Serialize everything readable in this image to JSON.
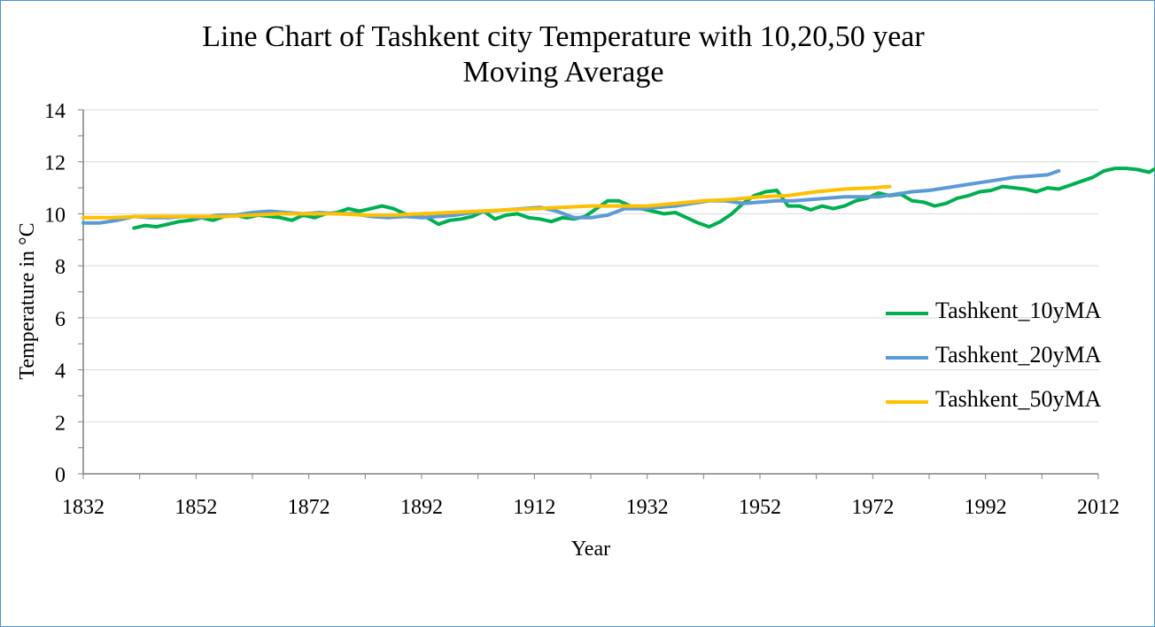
{
  "chart_data": {
    "type": "line",
    "title_lines": [
      "Line Chart of Tashkent city Temperature with 10,20,50 year",
      "Moving Average"
    ],
    "xlabel": "Year",
    "ylabel": "Temperature in °C",
    "xlim": [
      1832,
      2012
    ],
    "ylim": [
      0,
      14
    ],
    "x_ticks": [
      1832,
      1852,
      1872,
      1892,
      1912,
      1932,
      1952,
      1972,
      1992,
      2012
    ],
    "y_ticks": [
      0,
      2,
      4,
      6,
      8,
      10,
      12,
      14
    ],
    "grid": true,
    "legend_position": "right",
    "series": [
      {
        "name": "Tashkent_10yMA",
        "color": "#00b050",
        "points": [
          [
            1841,
            9.45
          ],
          [
            1843,
            9.55
          ],
          [
            1845,
            9.5
          ],
          [
            1847,
            9.6
          ],
          [
            1849,
            9.7
          ],
          [
            1851,
            9.75
          ],
          [
            1853,
            9.85
          ],
          [
            1855,
            9.75
          ],
          [
            1857,
            9.9
          ],
          [
            1859,
            9.95
          ],
          [
            1861,
            9.85
          ],
          [
            1863,
            9.95
          ],
          [
            1865,
            9.9
          ],
          [
            1867,
            9.85
          ],
          [
            1869,
            9.75
          ],
          [
            1871,
            9.95
          ],
          [
            1873,
            9.85
          ],
          [
            1875,
            10.0
          ],
          [
            1877,
            10.05
          ],
          [
            1879,
            10.2
          ],
          [
            1881,
            10.1
          ],
          [
            1883,
            10.2
          ],
          [
            1885,
            10.3
          ],
          [
            1887,
            10.2
          ],
          [
            1889,
            10.0
          ],
          [
            1891,
            9.9
          ],
          [
            1893,
            9.85
          ],
          [
            1895,
            9.6
          ],
          [
            1897,
            9.75
          ],
          [
            1899,
            9.8
          ],
          [
            1901,
            9.9
          ],
          [
            1903,
            10.1
          ],
          [
            1905,
            9.8
          ],
          [
            1907,
            9.95
          ],
          [
            1909,
            10.0
          ],
          [
            1911,
            9.85
          ],
          [
            1913,
            9.8
          ],
          [
            1915,
            9.7
          ],
          [
            1917,
            9.85
          ],
          [
            1919,
            9.8
          ],
          [
            1921,
            9.9
          ],
          [
            1923,
            10.2
          ],
          [
            1925,
            10.5
          ],
          [
            1927,
            10.5
          ],
          [
            1929,
            10.3
          ],
          [
            1931,
            10.2
          ],
          [
            1933,
            10.1
          ],
          [
            1935,
            10.0
          ],
          [
            1937,
            10.05
          ],
          [
            1939,
            9.85
          ],
          [
            1941,
            9.65
          ],
          [
            1943,
            9.5
          ],
          [
            1945,
            9.7
          ],
          [
            1947,
            10.0
          ],
          [
            1949,
            10.4
          ],
          [
            1951,
            10.7
          ],
          [
            1953,
            10.85
          ],
          [
            1955,
            10.9
          ],
          [
            1957,
            10.3
          ],
          [
            1959,
            10.3
          ],
          [
            1961,
            10.15
          ],
          [
            1963,
            10.3
          ],
          [
            1965,
            10.2
          ],
          [
            1967,
            10.3
          ],
          [
            1969,
            10.5
          ],
          [
            1971,
            10.6
          ],
          [
            1973,
            10.8
          ],
          [
            1975,
            10.7
          ],
          [
            1977,
            10.75
          ],
          [
            1979,
            10.5
          ],
          [
            1981,
            10.45
          ],
          [
            1983,
            10.3
          ],
          [
            1985,
            10.4
          ],
          [
            1987,
            10.6
          ],
          [
            1989,
            10.7
          ],
          [
            1991,
            10.85
          ],
          [
            1993,
            10.9
          ],
          [
            1995,
            11.05
          ],
          [
            1997,
            11.0
          ],
          [
            1999,
            10.95
          ],
          [
            2001,
            10.85
          ],
          [
            2003,
            11.0
          ],
          [
            2005,
            10.95
          ],
          [
            2007,
            11.1
          ],
          [
            2009,
            11.25
          ],
          [
            2011,
            11.4
          ],
          [
            2013,
            11.65
          ],
          [
            2015,
            11.75
          ],
          [
            2017,
            11.75
          ],
          [
            2019,
            11.7
          ],
          [
            2021,
            11.6
          ],
          [
            2023,
            11.85
          ]
        ]
      },
      {
        "name": "Tashkent_20yMA",
        "color": "#5b9bd5",
        "points": [
          [
            1832,
            9.65
          ],
          [
            1835,
            9.65
          ],
          [
            1838,
            9.75
          ],
          [
            1841,
            9.9
          ],
          [
            1844,
            9.85
          ],
          [
            1847,
            9.85
          ],
          [
            1850,
            9.9
          ],
          [
            1853,
            9.85
          ],
          [
            1856,
            9.95
          ],
          [
            1859,
            9.95
          ],
          [
            1862,
            10.05
          ],
          [
            1865,
            10.1
          ],
          [
            1868,
            10.05
          ],
          [
            1871,
            10.0
          ],
          [
            1874,
            10.05
          ],
          [
            1877,
            10.0
          ],
          [
            1880,
            10.0
          ],
          [
            1883,
            9.9
          ],
          [
            1886,
            9.85
          ],
          [
            1889,
            9.9
          ],
          [
            1892,
            9.85
          ],
          [
            1895,
            9.9
          ],
          [
            1898,
            9.95
          ],
          [
            1901,
            10.05
          ],
          [
            1904,
            10.1
          ],
          [
            1907,
            10.15
          ],
          [
            1910,
            10.2
          ],
          [
            1913,
            10.25
          ],
          [
            1916,
            10.1
          ],
          [
            1919,
            9.85
          ],
          [
            1922,
            9.85
          ],
          [
            1925,
            9.95
          ],
          [
            1928,
            10.2
          ],
          [
            1931,
            10.2
          ],
          [
            1934,
            10.25
          ],
          [
            1937,
            10.3
          ],
          [
            1940,
            10.4
          ],
          [
            1943,
            10.5
          ],
          [
            1946,
            10.5
          ],
          [
            1949,
            10.4
          ],
          [
            1952,
            10.45
          ],
          [
            1955,
            10.5
          ],
          [
            1958,
            10.5
          ],
          [
            1961,
            10.55
          ],
          [
            1964,
            10.6
          ],
          [
            1967,
            10.65
          ],
          [
            1970,
            10.65
          ],
          [
            1973,
            10.65
          ],
          [
            1976,
            10.75
          ],
          [
            1979,
            10.85
          ],
          [
            1982,
            10.9
          ],
          [
            1985,
            11.0
          ],
          [
            1988,
            11.1
          ],
          [
            1991,
            11.2
          ],
          [
            1994,
            11.3
          ],
          [
            1997,
            11.4
          ],
          [
            2000,
            11.45
          ],
          [
            2003,
            11.5
          ],
          [
            2005,
            11.65
          ]
        ]
      },
      {
        "name": "Tashkent_50yMA",
        "color": "#ffc000",
        "points": [
          [
            1832,
            9.85
          ],
          [
            1837,
            9.85
          ],
          [
            1842,
            9.9
          ],
          [
            1847,
            9.9
          ],
          [
            1852,
            9.9
          ],
          [
            1857,
            9.9
          ],
          [
            1862,
            9.95
          ],
          [
            1867,
            10.0
          ],
          [
            1872,
            10.0
          ],
          [
            1877,
            10.0
          ],
          [
            1882,
            9.95
          ],
          [
            1887,
            9.95
          ],
          [
            1892,
            10.0
          ],
          [
            1897,
            10.05
          ],
          [
            1902,
            10.1
          ],
          [
            1907,
            10.15
          ],
          [
            1912,
            10.2
          ],
          [
            1917,
            10.25
          ],
          [
            1922,
            10.3
          ],
          [
            1927,
            10.3
          ],
          [
            1932,
            10.3
          ],
          [
            1937,
            10.4
          ],
          [
            1942,
            10.5
          ],
          [
            1947,
            10.55
          ],
          [
            1952,
            10.65
          ],
          [
            1957,
            10.7
          ],
          [
            1962,
            10.85
          ],
          [
            1967,
            10.95
          ],
          [
            1972,
            11.0
          ],
          [
            1975,
            11.05
          ]
        ]
      }
    ]
  }
}
